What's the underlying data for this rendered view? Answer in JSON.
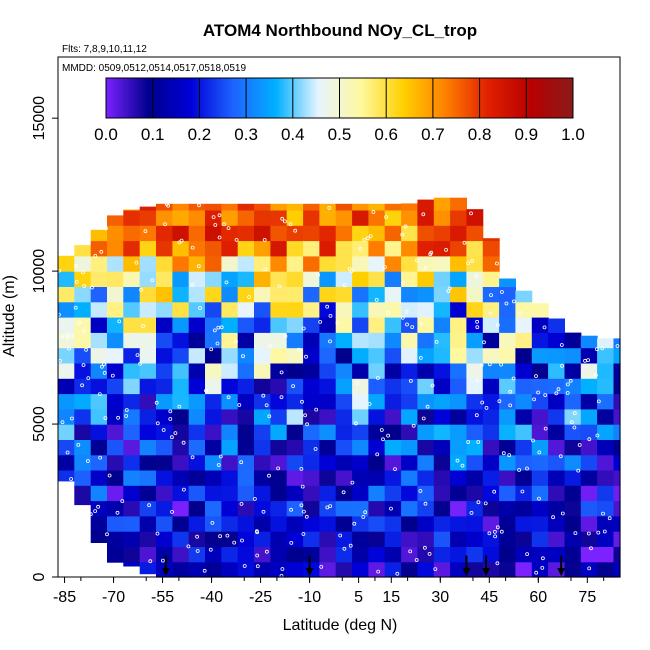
{
  "chart_data": {
    "type": "heatmap",
    "title": "ATOM4 Northbound NOy_CL_trop",
    "flights_label": "Flts: 7,8,9,10,11,12",
    "dates_label": "MMDD: 0509,0512,0514,0517,0518,0519",
    "xlabel": "Latitude (deg N)",
    "ylabel": "Altitude (m)",
    "xlim": [
      -87,
      85
    ],
    "ylim": [
      0,
      17000
    ],
    "x_ticks": [
      -85,
      -70,
      -55,
      -40,
      -25,
      -10,
      5,
      15,
      30,
      45,
      60,
      75
    ],
    "y_ticks": [
      0,
      5000,
      10000,
      15000
    ],
    "colorbar": {
      "min": 0.0,
      "max": 1.0,
      "ticks": [
        "0.0",
        "0.1",
        "0.2",
        "0.3",
        "0.4",
        "0.5",
        "0.6",
        "0.7",
        "0.8",
        "0.9",
        "1.0"
      ],
      "colors": [
        "#7b22ff",
        "#00008c",
        "#0000d8",
        "#1e63ff",
        "#00b0ff",
        "#e6f4ff",
        "#fff8a0",
        "#ffd000",
        "#ff8000",
        "#e02000",
        "#b80000",
        "#8b1a1a"
      ]
    },
    "arrows_lat": [
      -54,
      -10,
      38,
      44,
      67
    ],
    "grid_lat_step": 5,
    "grid_alt_step": 500,
    "column_tops": [
      {
        "lat": -87,
        "top": 10500
      },
      {
        "lat": -84,
        "top": 10500
      },
      {
        "lat": -80,
        "top": 10800
      },
      {
        "lat": -75,
        "top": 11300
      },
      {
        "lat": -70,
        "top": 11800
      },
      {
        "lat": -65,
        "top": 12000
      },
      {
        "lat": -55,
        "top": 12200
      },
      {
        "lat": -40,
        "top": 12200
      },
      {
        "lat": -25,
        "top": 12200
      },
      {
        "lat": -10,
        "top": 12200
      },
      {
        "lat": 5,
        "top": 12200
      },
      {
        "lat": 20,
        "top": 12200
      },
      {
        "lat": 28,
        "top": 12400
      },
      {
        "lat": 38,
        "top": 12400
      },
      {
        "lat": 44,
        "top": 11500
      },
      {
        "lat": 50,
        "top": 9800
      },
      {
        "lat": 60,
        "top": 9000
      },
      {
        "lat": 70,
        "top": 8000
      },
      {
        "lat": 80,
        "top": 7800
      },
      {
        "lat": 85,
        "top": 7800
      }
    ],
    "column_bottoms": [
      {
        "lat": -87,
        "bottom": 3500
      },
      {
        "lat": -80,
        "bottom": 2500
      },
      {
        "lat": -75,
        "bottom": 1200
      },
      {
        "lat": -70,
        "bottom": 500
      },
      {
        "lat": -62,
        "bottom": 300
      },
      {
        "lat": -58,
        "bottom": 0
      },
      {
        "lat": 85,
        "bottom": 0
      }
    ],
    "altitude_bands": [
      {
        "alt": 0,
        "base": 0.12,
        "vary": 0.1
      },
      {
        "alt": 2000,
        "base": 0.15,
        "vary": 0.15
      },
      {
        "alt": 4000,
        "base": 0.2,
        "vary": 0.18
      },
      {
        "alt": 6000,
        "base": 0.28,
        "vary": 0.22
      },
      {
        "alt": 8000,
        "base": 0.35,
        "vary": 0.25
      },
      {
        "alt": 9500,
        "base": 0.5,
        "vary": 0.2
      },
      {
        "alt": 10500,
        "base": 0.7,
        "vary": 0.15
      },
      {
        "alt": 12000,
        "base": 0.78,
        "vary": 0.12
      }
    ]
  }
}
